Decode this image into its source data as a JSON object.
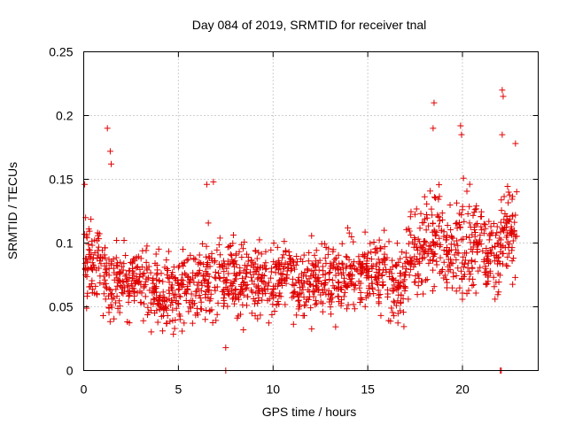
{
  "chart_data": {
    "type": "scatter",
    "title": "Day 084 of 2019, SRMTID for receiver tnal",
    "xlabel": "GPS time / hours",
    "ylabel": "SRMTID / TECUs",
    "xlim": [
      0,
      24
    ],
    "ylim": [
      0,
      0.25
    ],
    "xticks": [
      0,
      5,
      10,
      15,
      20
    ],
    "yticks": [
      0,
      0.05,
      0.1,
      0.15,
      0.2,
      0.25
    ],
    "xtick_labels": [
      "0",
      "5",
      "10",
      "15",
      "20"
    ],
    "ytick_labels": [
      "0",
      "0.05",
      "0.1",
      "0.15",
      "0.2",
      "0.25"
    ],
    "grid": true,
    "marker": "+",
    "marker_color": "#e00000",
    "series": [
      {
        "name": "SRMTID",
        "binned_profile": {
          "bin_width_hours": 1,
          "x_bin_start": [
            0,
            1,
            2,
            3,
            4,
            5,
            6,
            7,
            8,
            9,
            10,
            11,
            12,
            13,
            14,
            15,
            16,
            17,
            18,
            19,
            20,
            21,
            22
          ],
          "y_median": [
            0.085,
            0.07,
            0.07,
            0.065,
            0.06,
            0.065,
            0.07,
            0.075,
            0.07,
            0.07,
            0.075,
            0.065,
            0.07,
            0.07,
            0.075,
            0.075,
            0.07,
            0.09,
            0.1,
            0.095,
            0.1,
            0.09,
            0.11
          ],
          "y_low": [
            0.035,
            0.035,
            0.035,
            0.03,
            0.028,
            0.03,
            0.03,
            0.03,
            0.028,
            0.03,
            0.03,
            0.03,
            0.03,
            0.03,
            0.035,
            0.035,
            0.03,
            0.055,
            0.06,
            0.055,
            0.06,
            0.055,
            0.065
          ],
          "y_high": [
            0.13,
            0.125,
            0.12,
            0.115,
            0.11,
            0.12,
            0.14,
            0.13,
            0.125,
            0.115,
            0.115,
            0.11,
            0.12,
            0.125,
            0.13,
            0.12,
            0.125,
            0.16,
            0.175,
            0.175,
            0.185,
            0.15,
            0.18
          ]
        },
        "notable_points": [
          {
            "x": 0.05,
            "y": 0.146
          },
          {
            "x": 0.1,
            "y": 0.12
          },
          {
            "x": 1.25,
            "y": 0.19
          },
          {
            "x": 1.4,
            "y": 0.172
          },
          {
            "x": 1.45,
            "y": 0.162
          },
          {
            "x": 6.5,
            "y": 0.146
          },
          {
            "x": 6.85,
            "y": 0.148
          },
          {
            "x": 7.5,
            "y": 0.0
          },
          {
            "x": 7.5,
            "y": 0.018
          },
          {
            "x": 18.5,
            "y": 0.21
          },
          {
            "x": 18.45,
            "y": 0.19
          },
          {
            "x": 19.9,
            "y": 0.192
          },
          {
            "x": 19.95,
            "y": 0.185
          },
          {
            "x": 22.1,
            "y": 0.22
          },
          {
            "x": 22.15,
            "y": 0.215
          },
          {
            "x": 22.1,
            "y": 0.185
          },
          {
            "x": 22.0,
            "y": 0.0
          },
          {
            "x": 22.05,
            "y": 0.0
          },
          {
            "x": 22.8,
            "y": 0.178
          }
        ]
      }
    ]
  }
}
